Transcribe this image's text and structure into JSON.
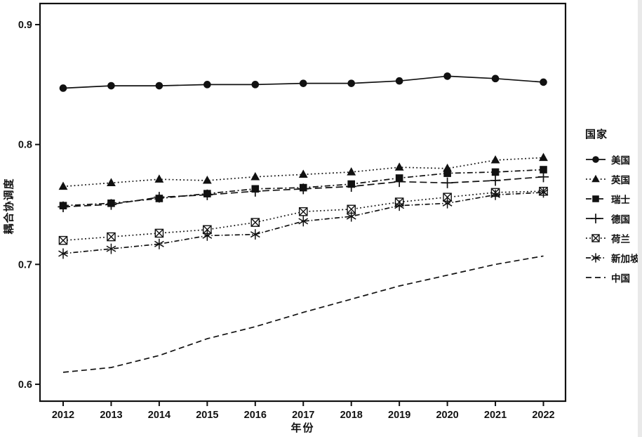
{
  "figure": {
    "background": "#ffffff",
    "ink_color": "#111111"
  },
  "chart_data": {
    "type": "line",
    "title": "",
    "xlabel": "年份",
    "ylabel": "耦合协调度",
    "x": [
      2012,
      2013,
      2014,
      2015,
      2016,
      2017,
      2018,
      2019,
      2020,
      2021,
      2022
    ],
    "x_tick_labels": [
      "2012",
      "2013",
      "2014",
      "2015",
      "2016",
      "2017",
      "2018",
      "2019",
      "2020",
      "2021",
      "2022"
    ],
    "y_ticks": [
      0.9,
      0.8,
      0.7,
      0.6
    ],
    "y_tick_labels": [
      "0.9",
      "0.8",
      "0.7",
      "0.6"
    ],
    "ylim": [
      0.586,
      0.918
    ],
    "grid": false,
    "legend": {
      "title": "国家",
      "position": "right-outside"
    },
    "series": [
      {
        "key": "usa",
        "name": "美国",
        "marker": "circle",
        "line": "solid",
        "values": [
          0.847,
          0.849,
          0.849,
          0.85,
          0.85,
          0.851,
          0.851,
          0.853,
          0.857,
          0.855,
          0.852
        ]
      },
      {
        "key": "uk",
        "name": "英国",
        "marker": "triangle",
        "line": "dotted",
        "values": [
          0.765,
          0.768,
          0.771,
          0.77,
          0.773,
          0.775,
          0.777,
          0.781,
          0.78,
          0.787,
          0.789
        ]
      },
      {
        "key": "switzerland",
        "name": "瑞士",
        "marker": "square",
        "line": "dashdot",
        "values": [
          0.749,
          0.751,
          0.755,
          0.759,
          0.763,
          0.764,
          0.767,
          0.772,
          0.776,
          0.777,
          0.779
        ]
      },
      {
        "key": "germany",
        "name": "德国",
        "marker": "plus",
        "line": "longdash",
        "values": [
          0.748,
          0.75,
          0.756,
          0.758,
          0.761,
          0.763,
          0.765,
          0.769,
          0.768,
          0.77,
          0.773
        ]
      },
      {
        "key": "netherlands",
        "name": "荷兰",
        "marker": "square-x",
        "line": "dotted",
        "values": [
          0.72,
          0.723,
          0.726,
          0.729,
          0.735,
          0.744,
          0.746,
          0.752,
          0.756,
          0.76,
          0.761
        ]
      },
      {
        "key": "singapore",
        "name": "新加坡",
        "marker": "asterisk",
        "line": "dashdot2",
        "values": [
          0.709,
          0.713,
          0.717,
          0.724,
          0.725,
          0.736,
          0.74,
          0.749,
          0.751,
          0.758,
          0.76
        ]
      },
      {
        "key": "china",
        "name": "中国",
        "marker": "none",
        "line": "dashed",
        "values": [
          0.61,
          0.614,
          0.624,
          0.638,
          0.648,
          0.66,
          0.671,
          0.682,
          0.691,
          0.7,
          0.707
        ]
      }
    ]
  }
}
